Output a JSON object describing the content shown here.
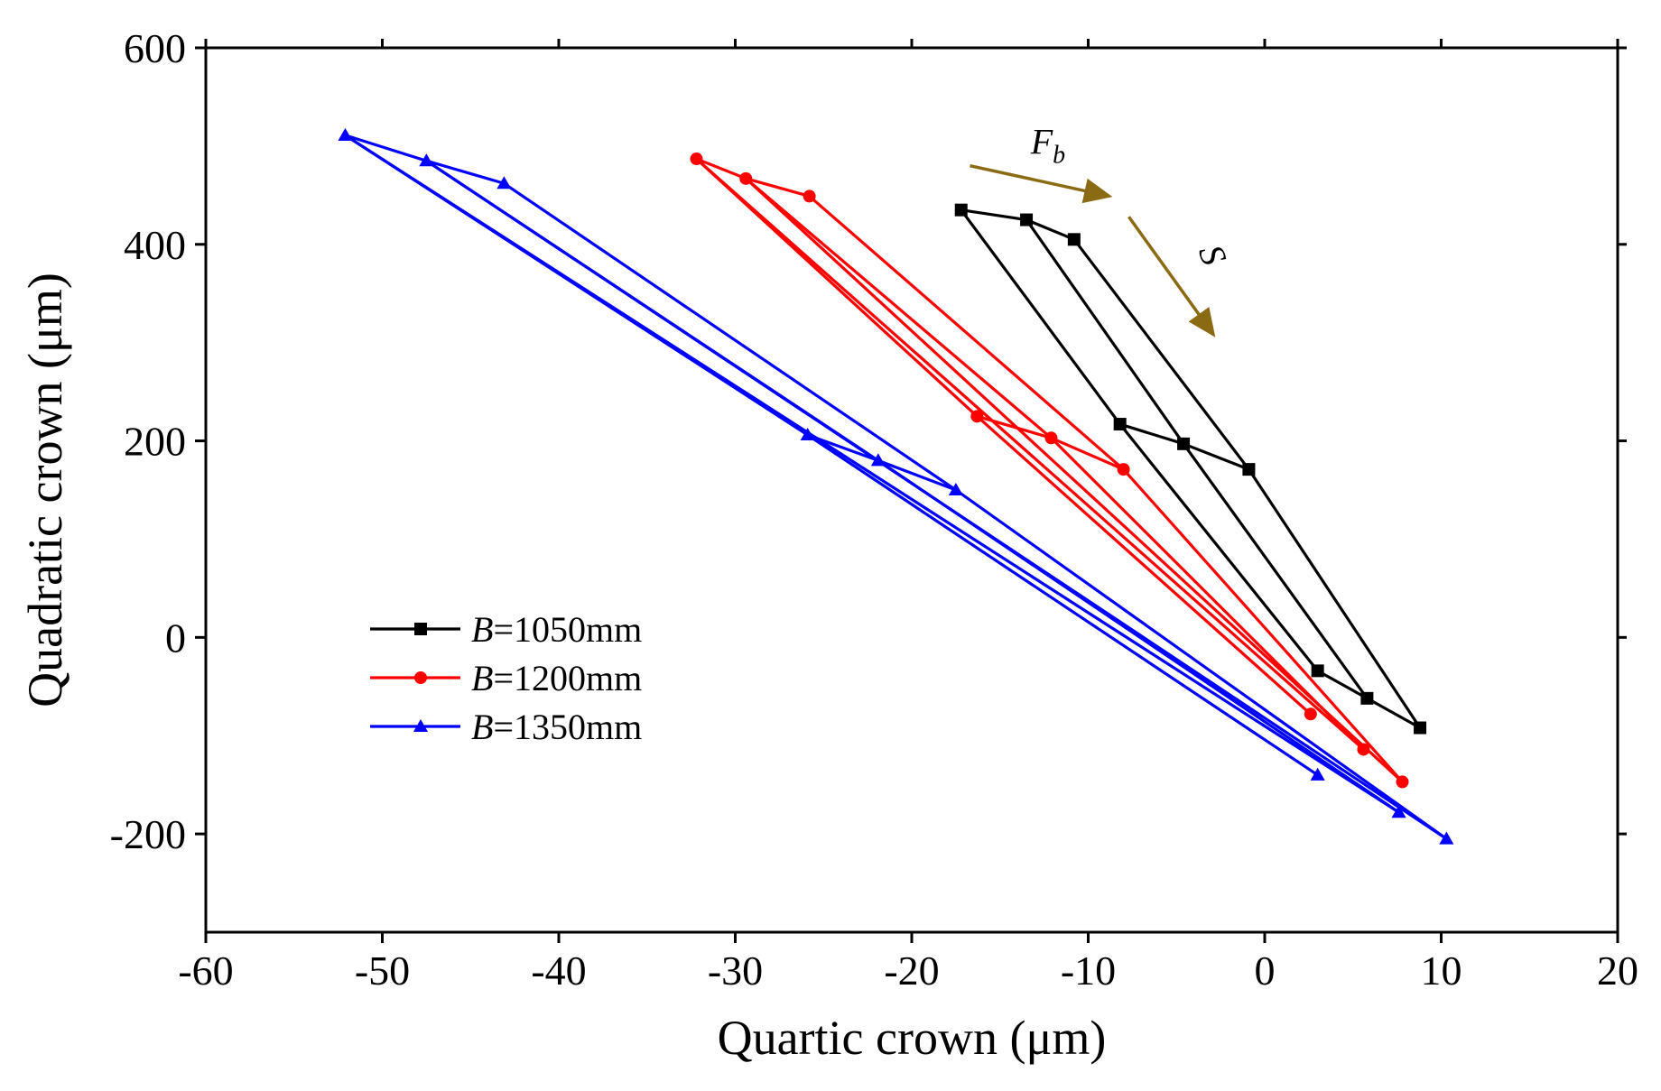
{
  "chart_data": {
    "type": "line",
    "title": "",
    "xlabel": "Quartic crown (μm)",
    "ylabel": "Quadratic crown (μm)",
    "xlim": [
      -60,
      20
    ],
    "ylim": [
      -300,
      600
    ],
    "xticks": [
      -60,
      -50,
      -40,
      -30,
      -20,
      -10,
      0,
      10,
      20
    ],
    "xtick_labels": [
      "-60",
      "-50",
      "-40",
      "-30",
      "-20",
      "-10",
      "0",
      "10",
      "20"
    ],
    "yticks": [
      -200,
      0,
      200,
      400,
      600
    ],
    "ytick_labels": [
      "-200",
      "0",
      "200",
      "400",
      "600"
    ],
    "grid": false,
    "legend_position": "lower-left",
    "series": [
      {
        "name": "B=1050mm",
        "legend_var": "B",
        "legend_rest": "=1050mm",
        "color": "#000000",
        "marker": "square",
        "points": [
          {
            "x": -17.2,
            "y": 435
          },
          {
            "x": -13.5,
            "y": 425
          },
          {
            "x": -10.8,
            "y": 405
          },
          {
            "x": -8.2,
            "y": 217
          },
          {
            "x": -4.6,
            "y": 197
          },
          {
            "x": -0.9,
            "y": 171
          },
          {
            "x": 3.0,
            "y": -34
          },
          {
            "x": 5.8,
            "y": -62
          },
          {
            "x": 8.8,
            "y": -92
          }
        ],
        "segments": [
          [
            0,
            1
          ],
          [
            1,
            2
          ],
          [
            3,
            4
          ],
          [
            4,
            5
          ],
          [
            6,
            7
          ],
          [
            7,
            8
          ],
          [
            0,
            3
          ],
          [
            3,
            6
          ],
          [
            1,
            4
          ],
          [
            4,
            7
          ],
          [
            2,
            5
          ],
          [
            5,
            8
          ]
        ]
      },
      {
        "name": "B=1200mm",
        "legend_var": "B",
        "legend_rest": "=1200mm",
        "color": "#ff0000",
        "marker": "circle",
        "points": [
          {
            "x": -32.2,
            "y": 487
          },
          {
            "x": -29.4,
            "y": 467
          },
          {
            "x": -25.8,
            "y": 449
          },
          {
            "x": -16.3,
            "y": 225
          },
          {
            "x": -12.1,
            "y": 203
          },
          {
            "x": -8.0,
            "y": 171
          },
          {
            "x": 2.6,
            "y": -78
          },
          {
            "x": 5.6,
            "y": -114
          },
          {
            "x": 7.8,
            "y": -147
          }
        ],
        "segments": [
          [
            0,
            1
          ],
          [
            1,
            2
          ],
          [
            3,
            4
          ],
          [
            4,
            5
          ],
          [
            0,
            3
          ],
          [
            3,
            6
          ],
          [
            1,
            4
          ],
          [
            4,
            7
          ],
          [
            2,
            5
          ],
          [
            5,
            8
          ],
          [
            0,
            7
          ],
          [
            1,
            8
          ]
        ]
      },
      {
        "name": "B=1350mm",
        "legend_var": "B",
        "legend_rest": "=1350mm",
        "color": "#0000ff",
        "marker": "triangle",
        "points": [
          {
            "x": -52.1,
            "y": 511
          },
          {
            "x": -47.5,
            "y": 485
          },
          {
            "x": -43.1,
            "y": 462
          },
          {
            "x": -25.9,
            "y": 206
          },
          {
            "x": -21.9,
            "y": 180
          },
          {
            "x": -17.5,
            "y": 150
          },
          {
            "x": 3.0,
            "y": -140
          },
          {
            "x": 7.6,
            "y": -178
          },
          {
            "x": 10.3,
            "y": -205
          }
        ],
        "segments": [
          [
            0,
            1
          ],
          [
            1,
            2
          ],
          [
            3,
            4
          ],
          [
            4,
            5
          ],
          [
            0,
            3
          ],
          [
            3,
            6
          ],
          [
            1,
            4
          ],
          [
            4,
            7
          ],
          [
            2,
            5
          ],
          [
            5,
            8
          ],
          [
            0,
            7
          ],
          [
            1,
            8
          ]
        ]
      }
    ],
    "annotations": [
      {
        "id": "fb",
        "label": "F",
        "subscript": "b",
        "color": "#8b6a14",
        "from": {
          "x": -16.7,
          "y": 480
        },
        "to": {
          "x": -8.8,
          "y": 449
        }
      },
      {
        "id": "s",
        "label": "S",
        "color": "#8b6a14",
        "from": {
          "x": -7.7,
          "y": 428
        },
        "to": {
          "x": -2.9,
          "y": 308
        }
      }
    ]
  }
}
